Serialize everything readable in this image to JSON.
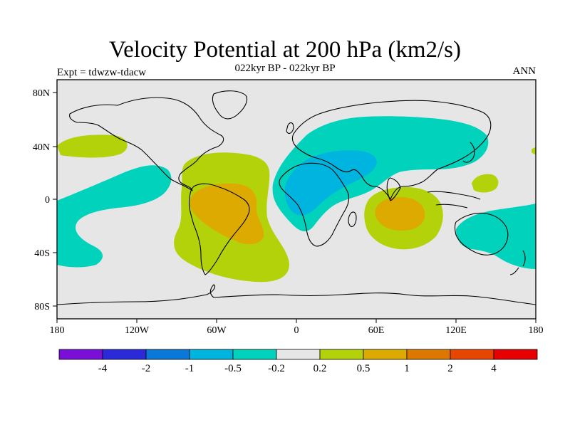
{
  "title": "Velocity Potential at 200 hPa (km2/s)",
  "subtitle": "022kyr BP - 022kyr BP",
  "left_label": "Expt = tdwzw-tdacw",
  "right_label": "ANN",
  "map": {
    "lat_ticks": [
      "80N",
      "40N",
      "0",
      "40S",
      "80S"
    ],
    "lon_ticks": [
      "180",
      "120W",
      "60W",
      "0",
      "60E",
      "120E",
      "180"
    ]
  },
  "colorbar": {
    "colors": [
      "#7a10d8",
      "#2a2ad8",
      "#0a78d8",
      "#00b4e0",
      "#00d2bc",
      "#e6e6e6",
      "#b4d20a",
      "#dcaa00",
      "#dc7800",
      "#e64600",
      "#e60000"
    ],
    "labels": [
      "-4",
      "-2",
      "-1",
      "-0.5",
      "-0.2",
      "0.2",
      "0.5",
      "1",
      "2",
      "4"
    ]
  }
}
